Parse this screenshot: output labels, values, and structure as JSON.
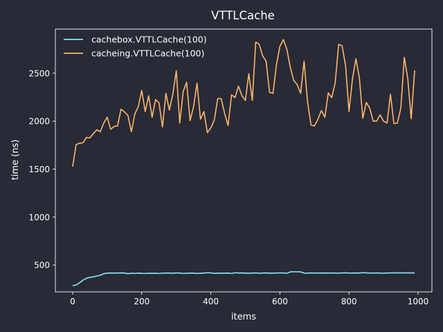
{
  "chart_data": {
    "type": "line",
    "title": "VTTLCache",
    "xlabel": "items",
    "ylabel": "time (ns)",
    "xlim": [
      -50,
      1040
    ],
    "ylim": [
      220,
      2960
    ],
    "xticks": [
      0,
      200,
      400,
      600,
      800,
      1000
    ],
    "yticks": [
      500,
      1000,
      1500,
      2000,
      2500
    ],
    "grid": false,
    "legend_position": "top-left",
    "x": [
      0,
      10,
      20,
      30,
      40,
      50,
      60,
      70,
      80,
      90,
      100,
      110,
      120,
      130,
      140,
      150,
      160,
      170,
      180,
      190,
      200,
      210,
      220,
      230,
      240,
      250,
      260,
      270,
      280,
      290,
      300,
      310,
      320,
      330,
      340,
      350,
      360,
      370,
      380,
      390,
      400,
      410,
      420,
      430,
      440,
      450,
      460,
      470,
      480,
      490,
      500,
      510,
      520,
      530,
      540,
      550,
      560,
      570,
      580,
      590,
      600,
      610,
      620,
      630,
      640,
      650,
      660,
      670,
      680,
      690,
      700,
      710,
      720,
      730,
      740,
      750,
      760,
      770,
      780,
      790,
      800,
      810,
      820,
      830,
      840,
      850,
      860,
      870,
      880,
      890,
      900,
      910,
      920,
      930,
      940,
      950,
      960,
      970,
      980,
      990
    ],
    "series": [
      {
        "name": "cachebox.VTTLCache(100)",
        "color": "#8be9fd",
        "values": [
          285,
          292,
          315,
          343,
          362,
          372,
          376,
          386,
          393,
          410,
          415,
          417,
          416,
          417,
          418,
          416,
          410,
          414,
          412,
          415,
          413,
          412,
          414,
          413,
          414,
          412,
          415,
          416,
          417,
          414,
          418,
          416,
          412,
          414,
          415,
          415,
          412,
          414,
          416,
          420,
          418,
          413,
          415,
          414,
          415,
          416,
          412,
          420,
          417,
          418,
          416,
          414,
          416,
          418,
          414,
          416,
          418,
          415,
          416,
          417,
          418,
          418,
          414,
          428,
          430,
          430,
          428,
          416,
          415,
          418,
          416,
          417,
          418,
          416,
          417,
          418,
          416,
          415,
          418,
          419,
          417,
          416,
          418,
          417,
          420,
          418,
          416,
          417,
          418,
          416,
          415,
          417,
          418,
          419,
          418,
          418,
          418,
          418,
          418,
          418
        ]
      },
      {
        "name": "cacheing.VTTLCache(100)",
        "color": "#ffb86c",
        "values": [
          1525,
          1755,
          1770,
          1775,
          1830,
          1825,
          1870,
          1910,
          1890,
          1980,
          2040,
          1915,
          1945,
          1950,
          2125,
          2095,
          2060,
          1890,
          2075,
          2150,
          2320,
          2100,
          2265,
          2040,
          2225,
          2190,
          1940,
          2290,
          2115,
          2280,
          2525,
          1980,
          2310,
          2405,
          2005,
          2150,
          2395,
          2020,
          2100,
          1880,
          1930,
          2010,
          2235,
          2235,
          2080,
          1955,
          2275,
          2245,
          2365,
          2265,
          2215,
          2495,
          2215,
          2825,
          2800,
          2680,
          2625,
          2300,
          2290,
          2590,
          2780,
          2850,
          2750,
          2560,
          2425,
          2380,
          2290,
          2625,
          2200,
          1960,
          1950,
          2020,
          2110,
          2040,
          2295,
          2245,
          2400,
          2800,
          2785,
          2580,
          2100,
          2440,
          2650,
          2450,
          2030,
          2195,
          2135,
          2000,
          2000,
          2065,
          2000,
          1980,
          2280,
          1975,
          1980,
          2135,
          2665,
          2445,
          2025,
          2530
        ]
      }
    ]
  }
}
